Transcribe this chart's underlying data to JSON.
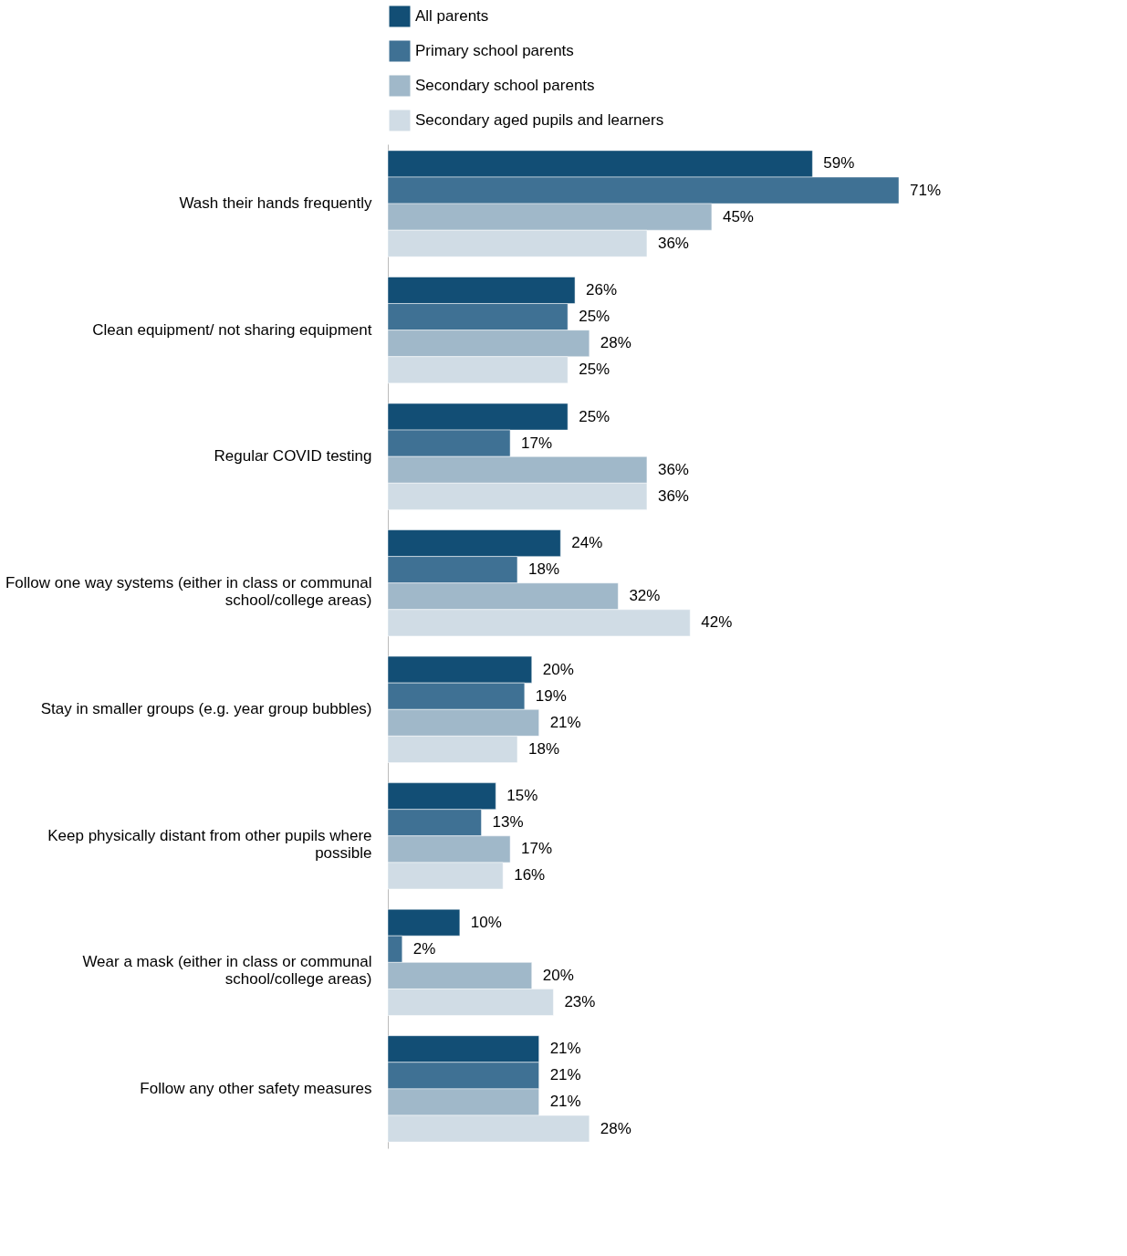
{
  "chart_data": {
    "type": "bar",
    "orientation": "horizontal",
    "legend": "top left",
    "grid": false,
    "categories": [
      "Wash their hands frequently",
      "Clean equipment/ not sharing equipment",
      "Regular COVID testing",
      "Follow one way systems (either in class or communal school/college areas)",
      "Stay in smaller groups (e.g. year group bubbles)",
      "Keep physically distant from other pupils where possible",
      "Wear a mask (either in class or communal school/college areas)",
      "Follow any other safety measures"
    ],
    "series": [
      {
        "name": "All parents",
        "color": "#124e75",
        "values": [
          59,
          26,
          25,
          24,
          20,
          15,
          10,
          21
        ],
        "value_labels": [
          "59%",
          "26%",
          "25%",
          "24%",
          "20%",
          "15%",
          "10%",
          "21%"
        ]
      },
      {
        "name": "Primary school parents",
        "color": "#3f7194",
        "values": [
          71,
          25,
          17,
          18,
          19,
          13,
          2,
          21
        ],
        "value_labels": [
          "71%",
          "25%",
          "17%",
          "18%",
          "19%",
          "13%",
          "2%",
          "21%"
        ]
      },
      {
        "name": "Secondary school parents",
        "color": "#a0b8c9",
        "values": [
          45,
          28,
          36,
          32,
          21,
          17,
          20,
          21
        ],
        "value_labels": [
          "45%",
          "28%",
          "36%",
          "32%",
          "21%",
          "17%",
          "20%",
          "21%"
        ]
      },
      {
        "name": "Secondary aged pupils and learners",
        "color": "#d0dce5",
        "values": [
          36,
          25,
          36,
          42,
          18,
          16,
          23,
          28
        ],
        "value_labels": [
          "36%",
          "25%",
          "36%",
          "42%",
          "18%",
          "16%",
          "23%",
          "28%"
        ]
      }
    ]
  }
}
